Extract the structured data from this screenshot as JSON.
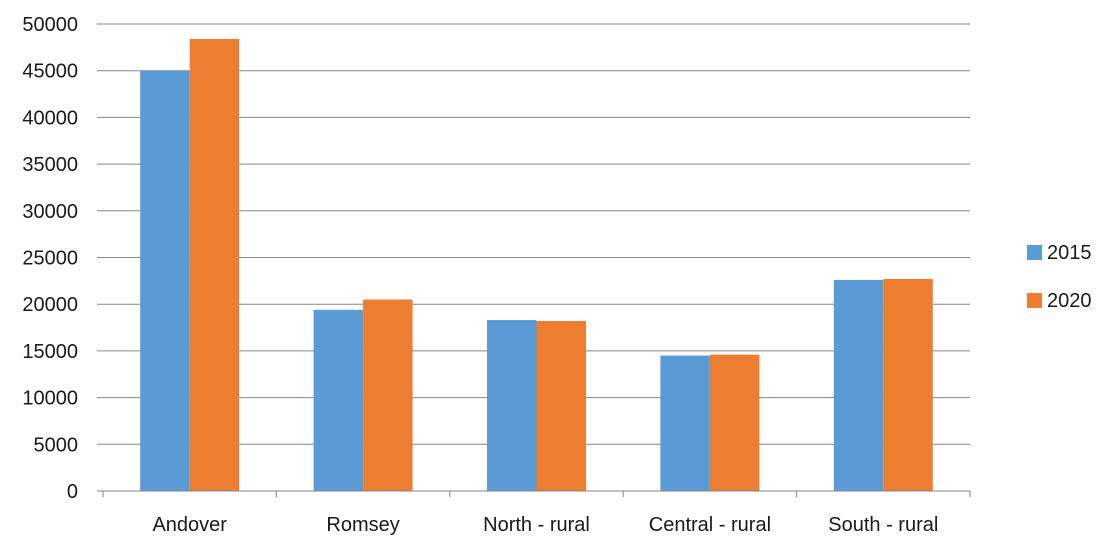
{
  "chart_data": {
    "type": "bar",
    "title": "",
    "xlabel": "",
    "ylabel": "",
    "categories": [
      "Andover",
      "Romsey",
      "North - rural",
      "Central - rural",
      "South - rural"
    ],
    "series": [
      {
        "name": "2015",
        "color": "#5b9bd5",
        "values": [
          45000,
          19400,
          18300,
          14500,
          22600
        ]
      },
      {
        "name": "2020",
        "color": "#ed7d31",
        "values": [
          48400,
          20500,
          18200,
          14600,
          22700
        ]
      }
    ],
    "ylim": [
      0,
      50000
    ],
    "yticks": [
      "0",
      "5000",
      "10000",
      "15000",
      "20000",
      "25000",
      "30000",
      "35000",
      "40000",
      "45000",
      "50000"
    ],
    "grid": true,
    "legend_position": "right"
  }
}
